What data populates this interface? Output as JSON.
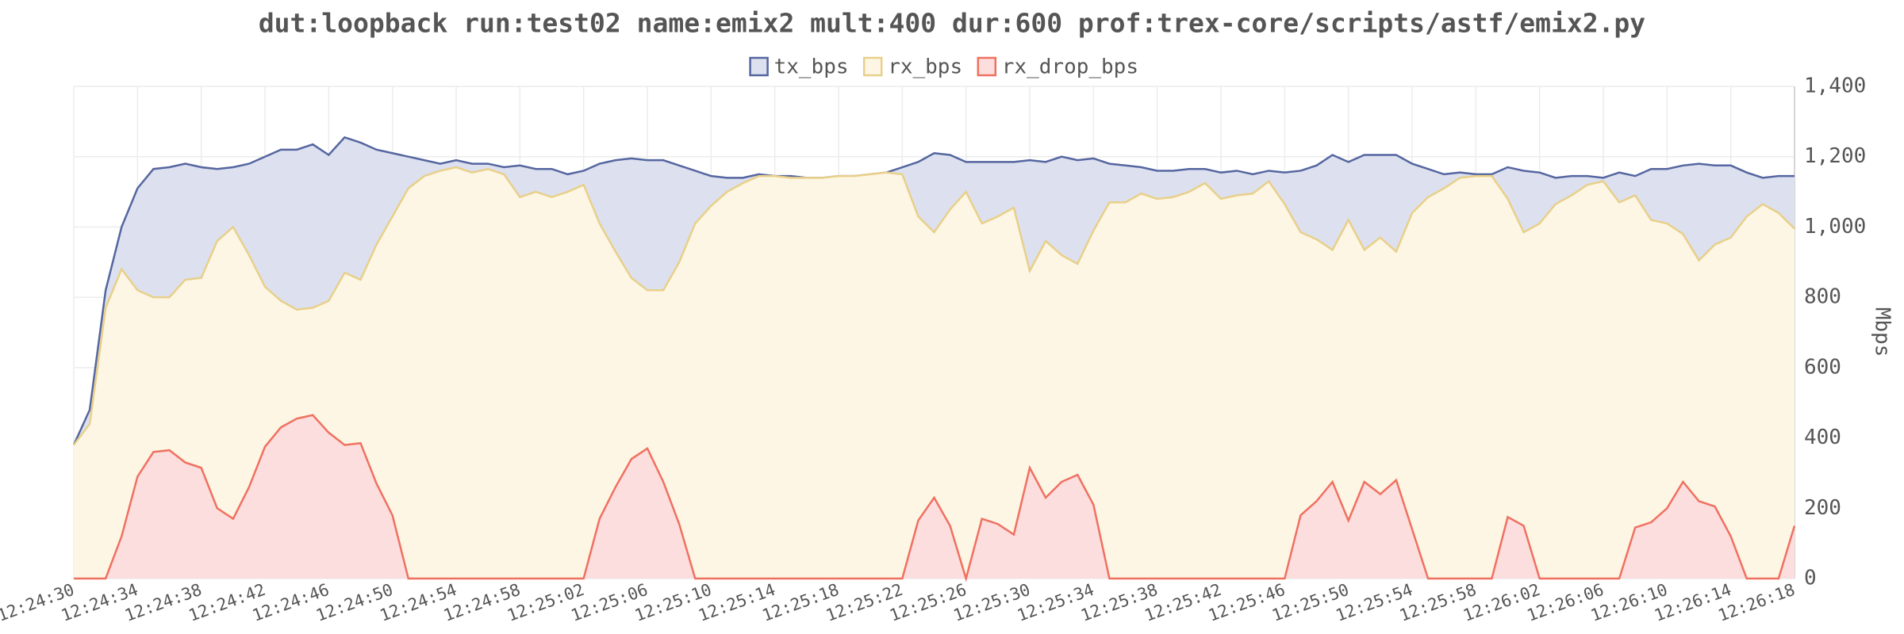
{
  "chart_data": {
    "type": "area",
    "title": "dut:loopback run:test02 name:emix2 mult:400 dur:600 prof:trex-core/scripts/astf/emix2.py",
    "y_axis_label": "Mbps",
    "x": [
      "12:24:30",
      null,
      null,
      null,
      "12:24:34",
      null,
      null,
      null,
      "12:24:38",
      null,
      null,
      null,
      "12:24:42",
      null,
      null,
      null,
      "12:24:46",
      null,
      null,
      null,
      "12:24:50",
      null,
      null,
      null,
      "12:24:54",
      null,
      null,
      null,
      "12:24:58",
      null,
      null,
      null,
      "12:25:02",
      null,
      null,
      null,
      "12:25:06",
      null,
      null,
      null,
      "12:25:10",
      null,
      null,
      null,
      "12:25:14",
      null,
      null,
      null,
      "12:25:18",
      null,
      null,
      null,
      "12:25:22",
      null,
      null,
      null,
      "12:25:26",
      null,
      null,
      null,
      "12:25:30",
      null,
      null,
      null,
      "12:25:34",
      null,
      null,
      null,
      "12:25:38",
      null,
      null,
      null,
      "12:25:42",
      null,
      null,
      null,
      "12:25:46",
      null,
      null,
      null,
      "12:25:50",
      null,
      null,
      null,
      "12:25:54",
      null,
      null,
      null,
      "12:25:58",
      null,
      null,
      null,
      "12:26:02",
      null,
      null,
      null,
      "12:26:06",
      null,
      null,
      null,
      "12:26:10",
      null,
      null,
      null,
      "12:26:14",
      null,
      null,
      null,
      "12:26:18"
    ],
    "series": [
      {
        "name": "tx_bps",
        "color": "#5566a0",
        "fill_color": "#dde0ee",
        "values": [
          380,
          480,
          820,
          1000,
          1110,
          1165,
          1170,
          1180,
          1170,
          1165,
          1170,
          1180,
          1200,
          1220,
          1220,
          1235,
          1205,
          1255,
          1240,
          1220,
          1210,
          1200,
          1190,
          1180,
          1190,
          1180,
          1180,
          1170,
          1175,
          1165,
          1165,
          1150,
          1160,
          1180,
          1190,
          1195,
          1190,
          1190,
          1175,
          1160,
          1145,
          1140,
          1140,
          1150,
          1145,
          1145,
          1140,
          1140,
          1145,
          1145,
          1150,
          1155,
          1170,
          1185,
          1210,
          1205,
          1185,
          1185,
          1185,
          1185,
          1190,
          1185,
          1200,
          1190,
          1195,
          1180,
          1175,
          1170,
          1160,
          1160,
          1165,
          1165,
          1155,
          1160,
          1150,
          1160,
          1155,
          1160,
          1175,
          1205,
          1185,
          1205,
          1205,
          1205,
          1180,
          1165,
          1150,
          1155,
          1150,
          1150,
          1170,
          1160,
          1155,
          1140,
          1145,
          1145,
          1140,
          1155,
          1145,
          1165,
          1165,
          1175,
          1180,
          1175,
          1175,
          1155,
          1140,
          1145,
          1145
        ]
      },
      {
        "name": "rx_bps",
        "color": "#e8d08a",
        "fill_color": "#fdf6e4",
        "values": [
          380,
          440,
          770,
          880,
          820,
          800,
          800,
          850,
          855,
          960,
          1000,
          920,
          830,
          790,
          765,
          770,
          790,
          870,
          850,
          950,
          1030,
          1110,
          1145,
          1160,
          1170,
          1155,
          1165,
          1150,
          1085,
          1100,
          1085,
          1100,
          1120,
          1010,
          930,
          855,
          820,
          820,
          900,
          1010,
          1060,
          1100,
          1125,
          1145,
          1145,
          1140,
          1140,
          1140,
          1145,
          1145,
          1150,
          1155,
          1150,
          1030,
          985,
          1050,
          1100,
          1010,
          1030,
          1055,
          875,
          960,
          920,
          895,
          990,
          1070,
          1070,
          1095,
          1080,
          1085,
          1100,
          1125,
          1080,
          1090,
          1095,
          1130,
          1065,
          985,
          965,
          935,
          1020,
          935,
          970,
          930,
          1040,
          1085,
          1110,
          1140,
          1145,
          1145,
          1080,
          985,
          1010,
          1065,
          1090,
          1120,
          1130,
          1070,
          1090,
          1020,
          1010,
          980,
          905,
          950,
          970,
          1030,
          1065,
          1040,
          995
        ]
      },
      {
        "name": "rx_drop_bps",
        "color": "#f07060",
        "fill_color": "#fcdede",
        "values": [
          0,
          0,
          0,
          120,
          290,
          360,
          365,
          330,
          315,
          200,
          170,
          260,
          375,
          430,
          455,
          465,
          415,
          380,
          385,
          270,
          180,
          0,
          0,
          0,
          0,
          0,
          0,
          0,
          0,
          0,
          0,
          0,
          0,
          170,
          260,
          340,
          370,
          275,
          155,
          0,
          0,
          0,
          0,
          0,
          0,
          0,
          0,
          0,
          0,
          0,
          0,
          0,
          0,
          165,
          230,
          150,
          0,
          170,
          155,
          125,
          315,
          230,
          275,
          295,
          210,
          0,
          0,
          0,
          0,
          0,
          0,
          0,
          0,
          0,
          0,
          0,
          0,
          180,
          220,
          275,
          165,
          275,
          240,
          280,
          140,
          0,
          0,
          0,
          0,
          0,
          175,
          150,
          0,
          0,
          0,
          0,
          0,
          0,
          145,
          160,
          200,
          275,
          220,
          205,
          120,
          0,
          0,
          0,
          150
        ]
      }
    ],
    "ylim": [
      0,
      1400
    ],
    "yticks": [
      0,
      200,
      400,
      600,
      800,
      {
        "value": 1000,
        "label": "1,000"
      },
      {
        "value": 1200,
        "label": "1,200"
      },
      {
        "value": 1400,
        "label": "1,400"
      }
    ],
    "grid": true,
    "legend": "top"
  }
}
